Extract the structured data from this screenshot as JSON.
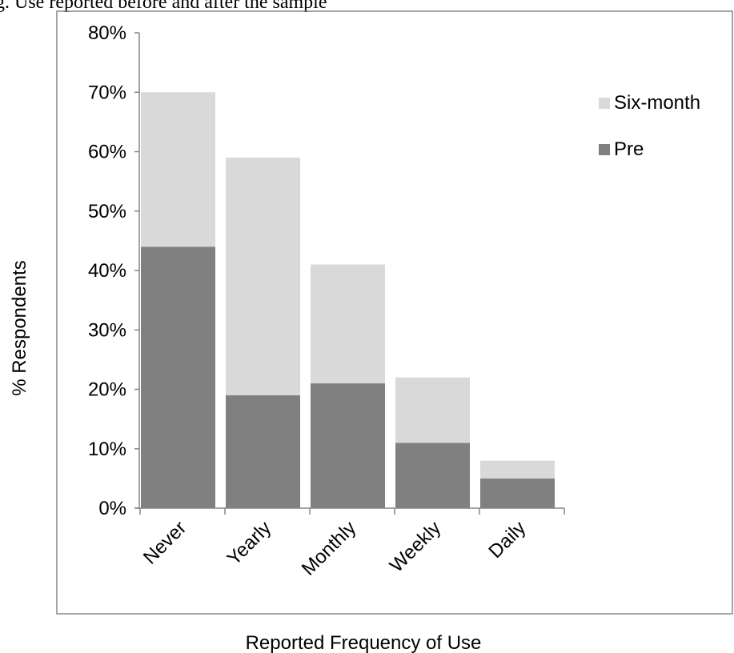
{
  "caption_fragment": "g. Use reported before and after the sample",
  "chart_data": {
    "type": "bar",
    "stacked": true,
    "categories": [
      "Never",
      "Yearly",
      "Monthly",
      "Weekly",
      "Daily"
    ],
    "series": [
      {
        "name": "Pre",
        "values": [
          44,
          19,
          21,
          11,
          5
        ],
        "color": "#808080"
      },
      {
        "name": "Six-month",
        "values": [
          26,
          40,
          20,
          11,
          3
        ],
        "color": "#d9d9d9"
      }
    ],
    "xlabel": "Reported Frequency of Use",
    "ylabel": "% Respondents",
    "ylim": [
      0,
      80
    ],
    "yticks": [
      0,
      10,
      20,
      30,
      40,
      50,
      60,
      70,
      80
    ],
    "ytick_labels": [
      "0%",
      "10%",
      "20%",
      "30%",
      "40%",
      "50%",
      "60%",
      "70%",
      "80%"
    ],
    "legend": [
      {
        "name": "Six-month",
        "color": "#d9d9d9"
      },
      {
        "name": "Pre",
        "color": "#808080"
      }
    ],
    "legend_position": "top-right",
    "grid": false
  }
}
